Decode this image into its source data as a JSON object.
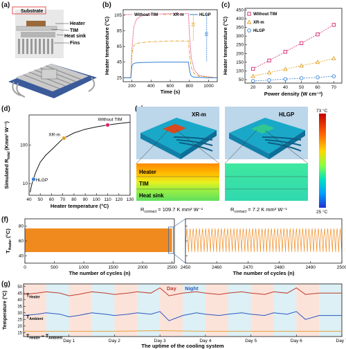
{
  "panel_labels": [
    "(a)",
    "(b)",
    "(c)",
    "(d)",
    "(e)",
    "(f)",
    "(g)"
  ],
  "panel_a": {
    "labels": [
      "Substrate",
      "Heater",
      "TIM",
      "Heat sink",
      "Fins"
    ]
  },
  "colors": {
    "without_tim": "#d6246e",
    "xrm": "#e0a020",
    "hlgp": "#2f7fd6",
    "fig_orange": "#f08a1e",
    "g_red": "#c0392b",
    "g_blue": "#2b57c0",
    "g_orange": "#e6a23c"
  },
  "chart_data": [
    {
      "id": "b",
      "type": "line",
      "xlabel": "Time (s)",
      "ylabel": "Heater temperature (°C)",
      "xlim": [
        110,
        1090
      ],
      "ylim": [
        20,
        112
      ],
      "xticks": [
        200,
        400,
        600,
        800,
        1000
      ],
      "yticks": [
        25,
        45,
        65,
        85,
        105
      ],
      "series": [
        {
          "name": "Without TIM",
          "style": "dotted",
          "x": [
            110,
            190,
            200,
            220,
            250,
            300,
            350,
            400,
            500,
            600,
            700,
            790,
            800,
            820,
            850,
            900,
            1000,
            1090
          ],
          "y": [
            25,
            25,
            60,
            90,
            100,
            104,
            105,
            106,
            106.5,
            107,
            107,
            107,
            80,
            50,
            35,
            28,
            26,
            25
          ]
        },
        {
          "name": "XR-m",
          "style": "dashdot",
          "x": [
            110,
            190,
            200,
            220,
            250,
            300,
            400,
            500,
            600,
            700,
            790,
            800,
            820,
            850,
            900,
            1000,
            1090
          ],
          "y": [
            25,
            25,
            55,
            66,
            69,
            70,
            71,
            71.5,
            72,
            72,
            72,
            55,
            38,
            30,
            27,
            26,
            25
          ]
        },
        {
          "name": "HLGP",
          "style": "solid",
          "x": [
            110,
            190,
            200,
            215,
            240,
            300,
            400,
            500,
            600,
            700,
            790,
            800,
            815,
            840,
            900,
            1000,
            1090
          ],
          "y": [
            25,
            25,
            40,
            43,
            44,
            44.5,
            44.8,
            45,
            45,
            45,
            45,
            35,
            28,
            26,
            25.5,
            25,
            25
          ]
        }
      ],
      "annotations": [
        "35",
        "65"
      ]
    },
    {
      "id": "c",
      "type": "scatter",
      "xlabel": "Power density (W cm⁻²)",
      "ylabel": "Heater temperature (°C)",
      "xlim": [
        15,
        75
      ],
      "ylim": [
        30,
        460
      ],
      "xticks": [
        20,
        30,
        40,
        50,
        60,
        70
      ],
      "yticks": [
        50,
        100,
        150,
        200,
        250,
        300,
        350,
        400,
        450
      ],
      "x": [
        20,
        30,
        40,
        50,
        60,
        70
      ],
      "series": [
        {
          "name": "Without TIM",
          "marker": "square",
          "values": [
            112,
            160,
            210,
            260,
            310,
            365
          ]
        },
        {
          "name": "XR-m",
          "marker": "triangle",
          "values": [
            70,
            90,
            110,
            130,
            150,
            172
          ]
        },
        {
          "name": "HLGP",
          "marker": "circle",
          "values": [
            42,
            47,
            53,
            58,
            63,
            69
          ]
        }
      ]
    },
    {
      "id": "d",
      "type": "scatter",
      "xlabel": "Heater temperature (°C)",
      "ylabel_main": "Simulated R",
      "ylabel_sub": "total",
      "ylabel_unit": " (Kmm² W⁻¹)",
      "xlim": [
        40,
        130
      ],
      "ylim_log": [
        5,
        600
      ],
      "xticks": [
        40,
        50,
        60,
        70,
        80,
        90,
        100,
        110,
        120,
        130
      ],
      "ytick_labels": [
        "10",
        "100"
      ],
      "yticks": [
        10,
        100
      ],
      "points": [
        {
          "label": "HLGP",
          "x": 44,
          "y": 13
        },
        {
          "label": "XR-m",
          "x": 71,
          "y": 150
        },
        {
          "label": "Without TIM",
          "x": 110,
          "y": 330
        }
      ],
      "curve_x": [
        41,
        42,
        43,
        44,
        46,
        50,
        55,
        60,
        70,
        80,
        90,
        100,
        110,
        120,
        130
      ],
      "curve_y": [
        6,
        8.5,
        11,
        13.5,
        20,
        36,
        55,
        75,
        145,
        205,
        255,
        295,
        330,
        360,
        388
      ]
    },
    {
      "id": "f_left",
      "type": "area",
      "xlabel": "The number of cycles (n)",
      "ylabel_main": "T",
      "ylabel_sub": "Heater",
      "ylabel_unit": " (°C)",
      "xlim": [
        0,
        2540
      ],
      "ylim": [
        30,
        90
      ],
      "xticks": [
        0,
        500,
        1000,
        1500,
        2000,
        2500
      ],
      "yticks": [
        40,
        60,
        80
      ],
      "band_min": 45,
      "band_max": 77,
      "x_end": 2500
    },
    {
      "id": "f_right",
      "type": "line",
      "xlabel": "The number of cycles (n)",
      "xlim": [
        2450,
        2500
      ],
      "ylim": [
        30,
        90
      ],
      "xticks": [
        2450,
        2460,
        2470,
        2480,
        2490,
        2500
      ],
      "yticks": [
        40,
        60,
        80
      ],
      "osc_min": 45,
      "osc_max": 77,
      "cycles": 50
    },
    {
      "id": "g",
      "type": "line",
      "xlabel": "The uptime of the cooling system",
      "ylabel": "Temperature (°C)",
      "xlim": [
        0,
        7
      ],
      "ylim": [
        12,
        52
      ],
      "xtick_labels": [
        "Day 1",
        "Day 2",
        "Day 3",
        "Day 4",
        "Day 5",
        "Day 6",
        "Day 7"
      ],
      "xticks": [
        1,
        2,
        3,
        4,
        5,
        6,
        7
      ],
      "yticks": [
        15,
        20,
        25,
        30,
        35,
        40,
        45,
        50
      ],
      "day_label": "Day",
      "night_label": "Night",
      "series_labels": {
        "heater_main": "T",
        "heater_sub": "Heater",
        "ambient_main": "T",
        "ambient_sub": "Ambient",
        "diff_main": "T",
        "diff_sub1": "Heater",
        "diff_mid": " − T",
        "diff_sub2": "Ambient"
      },
      "heater": {
        "x": [
          0,
          0.3,
          0.5,
          0.8,
          1.0,
          1.2,
          1.5,
          1.8,
          2.0,
          2.3,
          2.5,
          2.8,
          3.0,
          3.2,
          3.5,
          3.8,
          4.0,
          4.3,
          4.5,
          4.8,
          5.0,
          5.3,
          5.5,
          5.8,
          6.0,
          6.2,
          6.5,
          7.0
        ],
        "y": [
          44,
          45,
          46,
          45,
          43,
          44,
          46,
          45,
          44,
          45,
          46,
          45,
          49,
          43,
          45,
          46,
          45,
          44,
          45,
          46,
          45,
          44,
          46,
          45,
          49,
          44,
          45,
          45
        ]
      },
      "ambient": {
        "x": [
          0,
          0.3,
          0.5,
          0.8,
          1.0,
          1.2,
          1.5,
          1.8,
          2.0,
          2.3,
          2.5,
          2.8,
          3.0,
          3.2,
          3.5,
          3.8,
          4.0,
          4.3,
          4.5,
          4.8,
          5.0,
          5.3,
          5.5,
          5.8,
          6.0,
          6.2,
          6.5,
          7.0
        ],
        "y": [
          28,
          29,
          30,
          29,
          27,
          28,
          30,
          29,
          28,
          29,
          30,
          29,
          31,
          24,
          28,
          30,
          29,
          28,
          29,
          30,
          29,
          28,
          30,
          29,
          31,
          25,
          28,
          28
        ]
      },
      "diff": {
        "x": [
          0,
          1,
          2,
          3,
          4,
          5,
          6,
          7
        ],
        "y": [
          16,
          16,
          16,
          16.5,
          16,
          16,
          16,
          16
        ]
      }
    }
  ],
  "panel_e": {
    "left_title": "XR-m",
    "right_title": "HLGP",
    "layers": [
      "Heater",
      "TIM",
      "Heat sink"
    ],
    "colorbar_max": "73 °C",
    "colorbar_min": "25 °C",
    "r_left_main": "R",
    "r_left_sub": "contact",
    "r_left_val": " = 109.7 K mm² W⁻¹",
    "r_right_main": "R",
    "r_right_sub": "contact",
    "r_right_val": " = 7.2 K mm² W⁻¹"
  }
}
